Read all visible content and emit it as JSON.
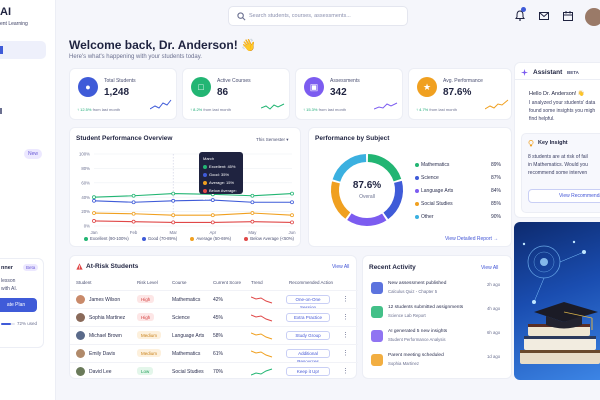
{
  "sidebar": {
    "logo": "AI",
    "logo_sub": "ent Learning",
    "new_badge": "New",
    "planner_title": "nner",
    "planner_badge": "Beta",
    "planner_text_1": "lesson",
    "planner_text_2": "with AI.",
    "planner_button": "ate Plan",
    "usage": "72% used",
    "usage_fraction": 0.72
  },
  "topbar": {
    "search_placeholder": "Search students, courses, assessments..."
  },
  "header": {
    "title": "Welcome back, Dr. Anderson! 👋",
    "subtitle": "Here's what's happening with your students today."
  },
  "stats": [
    {
      "label": "Total Students",
      "value": "1,248",
      "delta": "↑ 12.5%",
      "delta_suffix": "from last month",
      "color": "#3f5bd8"
    },
    {
      "label": "Active Courses",
      "value": "86",
      "delta": "↑ 8.2%",
      "delta_suffix": "from last month",
      "color": "#22b573"
    },
    {
      "label": "Assessments",
      "value": "342",
      "delta": "↑ 15.3%",
      "delta_suffix": "from last month",
      "color": "#7c5cf0"
    },
    {
      "label": "Avg. Performance",
      "value": "87.6%",
      "delta": "↑ 4.7%",
      "delta_suffix": "from last month",
      "color": "#f0a020"
    }
  ],
  "performance": {
    "title": "Student Performance Overview",
    "period": "This Semester",
    "tooltip_title": "March",
    "tooltip_rows": [
      "Excellent: 45%",
      "Good: 35%",
      "Average: 15%",
      "Below Average: 5%"
    ],
    "legend": [
      "Excellent (90-100%)",
      "Good (70-89%)",
      "Average (50-69%)",
      "Below Average (<50%)"
    ]
  },
  "subject": {
    "title": "Performance by Subject",
    "center_value": "87.6%",
    "center_label": "Overall",
    "link": "View Detailed Report  →"
  },
  "chart_data": [
    {
      "type": "line",
      "title": "Student Performance Overview",
      "categories": [
        "Jan",
        "Feb",
        "Mar",
        "Apr",
        "May",
        "Jun"
      ],
      "ylim": [
        0,
        100
      ],
      "yticks": [
        "100%",
        "80%",
        "60%",
        "40%",
        "20%",
        "0%"
      ],
      "series": [
        {
          "name": "Excellent (90-100%)",
          "color": "#22b573",
          "values": [
            40,
            42,
            45,
            44,
            42,
            45
          ]
        },
        {
          "name": "Good (70-89%)",
          "color": "#3f5bd8",
          "values": [
            35,
            33,
            35,
            36,
            33,
            33
          ]
        },
        {
          "name": "Average (50-69%)",
          "color": "#f0a020",
          "values": [
            18,
            17,
            15,
            15,
            18,
            15
          ]
        },
        {
          "name": "Below Average (<50%)",
          "color": "#e04848",
          "values": [
            7,
            6,
            5,
            5,
            6,
            5
          ]
        }
      ]
    },
    {
      "type": "pie",
      "title": "Performance by Subject",
      "categories": [
        "Mathematics",
        "Science",
        "Language Arts",
        "Social Studies",
        "Other"
      ],
      "values": [
        89,
        87,
        84,
        85,
        90
      ],
      "labels": [
        "89%",
        "87%",
        "84%",
        "85%",
        "90%"
      ],
      "colors": [
        "#22b573",
        "#3f5bd8",
        "#7c5cf0",
        "#f0a020",
        "#3bb0e0"
      ]
    }
  ],
  "at_risk": {
    "title": "At-Risk Students",
    "link": "View All",
    "columns": [
      "Student",
      "Risk Level",
      "Course",
      "Current Score",
      "Trend",
      "Recommended Action"
    ],
    "rows": [
      {
        "name": "James Wilson",
        "risk": "High",
        "course": "Mathematics",
        "score": "42%",
        "action": "One-on-One Session",
        "avatar": "#c98a6a",
        "risk_bg": "#fde6e6",
        "risk_fg": "#d33b3b",
        "trend_color": "#e04848"
      },
      {
        "name": "Sophia Martinez",
        "risk": "High",
        "course": "Science",
        "score": "45%",
        "action": "Extra Practice",
        "avatar": "#8a6a5a",
        "risk_bg": "#fde6e6",
        "risk_fg": "#d33b3b",
        "trend_color": "#e04848"
      },
      {
        "name": "Michael Brown",
        "risk": "Medium",
        "course": "Language Arts",
        "score": "58%",
        "action": "Study Group",
        "avatar": "#5a6a8a",
        "risk_bg": "#fdf0dc",
        "risk_fg": "#c9821c",
        "trend_color": "#f0a020"
      },
      {
        "name": "Emily Davis",
        "risk": "Medium",
        "course": "Mathematics",
        "score": "61%",
        "action": "Additional Resources",
        "avatar": "#b08a6a",
        "risk_bg": "#fdf0dc",
        "risk_fg": "#c9821c",
        "trend_color": "#f0a020"
      },
      {
        "name": "David Lee",
        "risk": "Low",
        "course": "Social Studies",
        "score": "70%",
        "action": "Keep it Up!",
        "avatar": "#6a7a5a",
        "risk_bg": "#e3f6ea",
        "risk_fg": "#22a05a",
        "trend_color": "#22b573"
      }
    ]
  },
  "activity": {
    "title": "Recent Activity",
    "link": "View All",
    "items": [
      {
        "title": "New assessment published",
        "sub": "Calculus Quiz - Chapter 5",
        "time": "2h ago",
        "color": "#3f5bd8"
      },
      {
        "title": "12 students submitted assignments",
        "sub": "Science Lab Report",
        "time": "4h ago",
        "color": "#22b573"
      },
      {
        "title": "AI generated 5 new insights",
        "sub": "Student Performance Analysis",
        "time": "6h ago",
        "color": "#7c5cf0"
      },
      {
        "title": "Parent meeting scheduled",
        "sub": "Sophia Martinez",
        "time": "1d ago",
        "color": "#f0a020"
      }
    ]
  },
  "assistant": {
    "title": "Assistant",
    "badge": "BETA",
    "message_1": "Hello Dr. Anderson! 👋",
    "message_2": "I analyzed your students' data",
    "message_3": "found some insights you migh",
    "message_4": "find helpful.",
    "insight_title": "Key Insight",
    "insight_1": "8 students are at risk of fail",
    "insight_2": "in Mathematics. Would you",
    "insight_3": "recommend some interven",
    "button": "View Recommenda"
  }
}
